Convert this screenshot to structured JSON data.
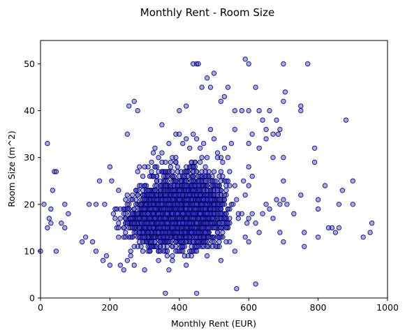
{
  "chart_data": {
    "type": "scatter",
    "title": "Monthly Rent - Room Size",
    "xlabel": "Monthly Rent (EUR)",
    "ylabel": "Room Size (m^2)",
    "xlim": [
      0,
      1000
    ],
    "ylim": [
      0,
      55
    ],
    "xticks": [
      0,
      200,
      400,
      600,
      800,
      1000
    ],
    "yticks": [
      0,
      10,
      20,
      30,
      40,
      50
    ],
    "grid": false,
    "legend": "none",
    "marker_color": "#4141d7",
    "marker_edge_color": "#000060",
    "series": [
      {
        "points": [
          [
            0,
            10
          ],
          [
            10,
            20
          ],
          [
            20,
            33
          ],
          [
            20,
            15
          ],
          [
            25,
            17
          ],
          [
            30,
            16
          ],
          [
            35,
            23
          ],
          [
            40,
            27
          ],
          [
            45,
            27
          ],
          [
            45,
            10
          ],
          [
            30,
            19
          ],
          [
            70,
            20
          ],
          [
            70,
            15
          ],
          [
            80,
            18
          ],
          [
            60,
            16
          ],
          [
            130,
            13
          ],
          [
            140,
            20
          ],
          [
            160,
            20
          ],
          [
            170,
            25
          ],
          [
            185,
            20
          ],
          [
            200,
            28
          ],
          [
            205,
            25
          ],
          [
            250,
            35
          ],
          [
            255,
            41
          ],
          [
            270,
            42
          ],
          [
            280,
            40
          ],
          [
            350,
            37
          ],
          [
            360,
            1
          ],
          [
            370,
            6
          ],
          [
            400,
            40
          ],
          [
            420,
            41
          ],
          [
            440,
            50
          ],
          [
            450,
            50
          ],
          [
            455,
            50
          ],
          [
            450,
            1
          ],
          [
            465,
            45
          ],
          [
            480,
            47
          ],
          [
            490,
            45
          ],
          [
            500,
            48
          ],
          [
            520,
            42
          ],
          [
            530,
            43
          ],
          [
            540,
            45
          ],
          [
            560,
            40
          ],
          [
            565,
            2
          ],
          [
            580,
            40
          ],
          [
            590,
            51
          ],
          [
            600,
            50
          ],
          [
            600,
            40
          ],
          [
            620,
            45
          ],
          [
            620,
            3
          ],
          [
            630,
            40
          ],
          [
            640,
            38
          ],
          [
            650,
            36
          ],
          [
            660,
            40
          ],
          [
            670,
            35
          ],
          [
            680,
            38
          ],
          [
            685,
            35
          ],
          [
            690,
            36
          ],
          [
            700,
            50
          ],
          [
            700,
            42
          ],
          [
            705,
            44
          ],
          [
            700,
            30
          ],
          [
            700,
            25
          ],
          [
            700,
            12
          ],
          [
            690,
            14
          ],
          [
            710,
            20
          ],
          [
            730,
            18
          ],
          [
            750,
            41
          ],
          [
            750,
            40
          ],
          [
            750,
            22
          ],
          [
            760,
            11
          ],
          [
            770,
            50
          ],
          [
            760,
            14
          ],
          [
            790,
            32
          ],
          [
            790,
            29
          ],
          [
            800,
            13
          ],
          [
            800,
            19
          ],
          [
            800,
            21
          ],
          [
            820,
            24
          ],
          [
            830,
            15
          ],
          [
            840,
            15
          ],
          [
            850,
            14
          ],
          [
            860,
            15
          ],
          [
            860,
            20
          ],
          [
            870,
            23
          ],
          [
            880,
            38
          ],
          [
            900,
            20
          ],
          [
            900,
            25
          ],
          [
            930,
            13
          ],
          [
            950,
            14
          ],
          [
            955,
            16
          ],
          [
            120,
            12
          ],
          [
            150,
            12
          ],
          [
            160,
            10
          ],
          [
            180,
            8
          ],
          [
            190,
            9
          ],
          [
            200,
            7
          ],
          [
            210,
            18
          ],
          [
            220,
            15
          ],
          [
            230,
            7
          ],
          [
            240,
            6
          ],
          [
            250,
            8
          ],
          [
            260,
            9
          ],
          [
            270,
            7
          ],
          [
            300,
            6
          ],
          [
            300,
            24
          ],
          [
            310,
            28
          ],
          [
            330,
            32
          ],
          [
            340,
            30
          ],
          [
            350,
            31
          ],
          [
            360,
            29
          ],
          [
            370,
            33
          ],
          [
            380,
            30
          ],
          [
            390,
            35
          ],
          [
            400,
            35
          ],
          [
            410,
            33
          ],
          [
            420,
            34
          ],
          [
            430,
            32
          ],
          [
            440,
            35
          ],
          [
            450,
            34
          ],
          [
            460,
            32
          ],
          [
            470,
            33
          ],
          [
            480,
            30
          ],
          [
            490,
            36
          ],
          [
            500,
            34
          ],
          [
            510,
            31
          ],
          [
            520,
            30
          ],
          [
            530,
            32
          ],
          [
            540,
            30
          ],
          [
            550,
            33
          ],
          [
            560,
            36
          ],
          [
            420,
            7
          ],
          [
            380,
            8
          ],
          [
            340,
            8
          ],
          [
            480,
            9
          ],
          [
            520,
            8
          ],
          [
            560,
            10
          ],
          [
            590,
            13
          ],
          [
            600,
            12
          ],
          [
            610,
            18
          ],
          [
            620,
            16
          ],
          [
            630,
            14
          ],
          [
            640,
            18
          ],
          [
            650,
            20
          ],
          [
            660,
            19
          ],
          [
            670,
            17
          ],
          [
            680,
            21
          ],
          [
            690,
            20
          ],
          [
            700,
            21
          ],
          [
            590,
            22
          ],
          [
            600,
            28
          ],
          [
            610,
            26
          ],
          [
            630,
            32
          ],
          [
            650,
            34
          ],
          [
            670,
            30
          ],
          [
            600,
            33
          ],
          [
            610,
            35
          ]
        ],
        "dense_clusters": [
          {
            "x_range": [
              215,
              560
            ],
            "y_range": [
              9,
              25
            ],
            "count": 2200
          },
          {
            "x_range": [
              250,
              600
            ],
            "y_range": [
              12,
              31
            ],
            "count": 700
          },
          {
            "x_range": [
              380,
              510
            ],
            "y_range": [
              14,
              25
            ],
            "count": 400
          }
        ]
      }
    ]
  }
}
